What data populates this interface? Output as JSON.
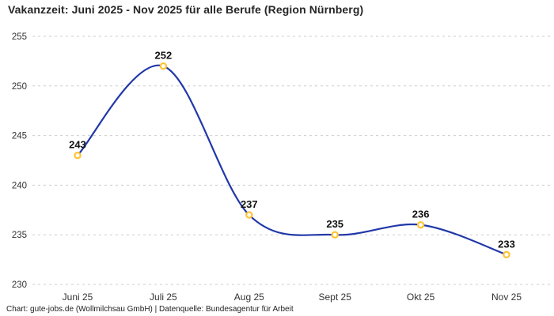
{
  "title": "Vakanzzeit: Juni 2025 - Nov 2025 für alle Berufe (Region Nürnberg)",
  "footer": "Chart: gute-jobs.de (Wollmilchsau GmbH) | Datenquelle: Bundesagentur für Arbeit",
  "colors": {
    "line": "#2138a8",
    "marker_ring": "#ffc233",
    "marker_fill": "#ffffff",
    "grid": "#cccccc",
    "title_text": "#262626",
    "tick_text": "#333333",
    "label_text": "#111111"
  },
  "chart_data": {
    "type": "line",
    "categories": [
      "Juni 25",
      "Juli 25",
      "Aug 25",
      "Sept 25",
      "Okt 25",
      "Nov 25"
    ],
    "values": [
      243,
      252,
      237,
      235,
      236,
      233
    ],
    "title": "Vakanzzeit: Juni 2025 - Nov 2025 für alle Berufe (Region Nürnberg)",
    "xlabel": "",
    "ylabel": "",
    "ylim": [
      230,
      255
    ],
    "yticks": [
      230,
      235,
      240,
      245,
      250,
      255
    ],
    "grid": "horizontal-dashed",
    "legend": "none",
    "line_style": "smooth",
    "marker_style": "open-circle",
    "data_labels": true
  }
}
